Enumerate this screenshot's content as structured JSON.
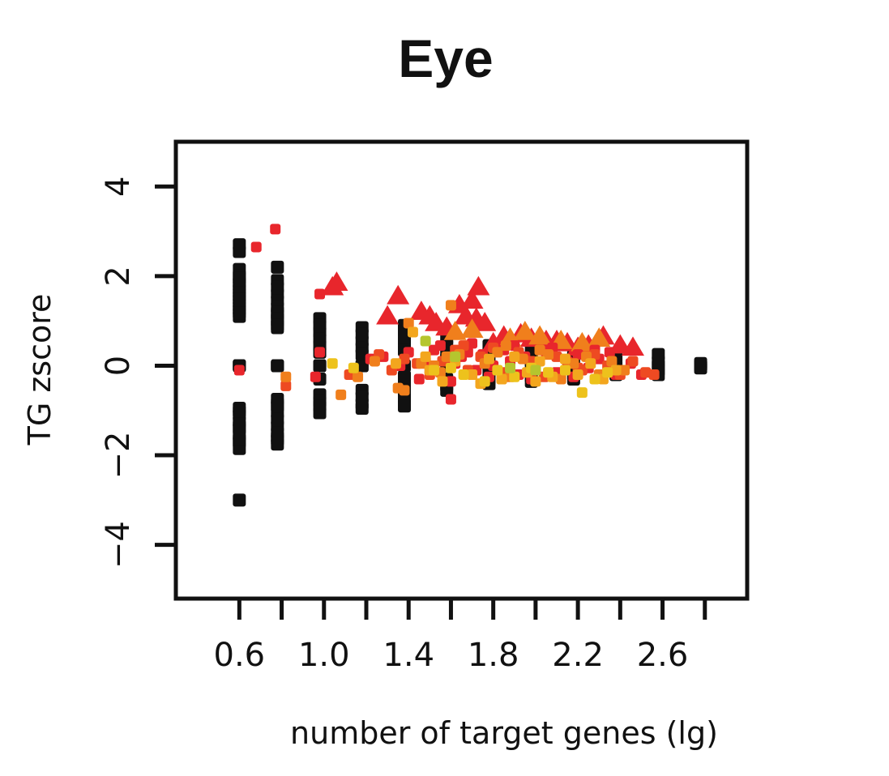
{
  "chart_data": {
    "type": "scatter",
    "title": "Eye",
    "xlabel": "number of target genes (lg)",
    "ylabel": "TG zscore",
    "xlim": [
      0.3,
      3.0
    ],
    "ylim": [
      -5.2,
      5.0
    ],
    "xticks": [
      0.6,
      0.8,
      1.0,
      1.2,
      1.4,
      1.6,
      1.8,
      2.0,
      2.2,
      2.4,
      2.6,
      2.8
    ],
    "xtick_labels": [
      "0.6",
      "",
      "1.0",
      "",
      "1.4",
      "",
      "1.8",
      "",
      "2.2",
      "",
      "2.6",
      ""
    ],
    "yticks": [
      -4,
      -2,
      0,
      2,
      4
    ],
    "ytick_labels": [
      "−4",
      "−2",
      "0",
      "2",
      "4"
    ],
    "grid": false,
    "legend": "none",
    "colors": {
      "background": "#ffffff",
      "axis": "#111111",
      "null": "#111111",
      "red": "#e8262c",
      "orange_red": "#ee4a22",
      "orange": "#f07f1c",
      "amber": "#f3a61e",
      "yellow": "#edc21c",
      "yellow_green": "#b5c52e"
    },
    "series": [
      {
        "marker": "square",
        "color": "#111111",
        "x": [
          0.6,
          0.6,
          0.6,
          0.6,
          0.6,
          0.6,
          0.6,
          0.6,
          0.6,
          0.6,
          0.6,
          0.6,
          0.6,
          0.6,
          0.6,
          0.6,
          0.6,
          0.6,
          0.6,
          0.6,
          0.6,
          0.6,
          0.6,
          0.6,
          0.6,
          0.6,
          0.6,
          0.6,
          0.6,
          0.6,
          0.78,
          0.78,
          0.78,
          0.78,
          0.78,
          0.78,
          0.78,
          0.78,
          0.78,
          0.78,
          0.78,
          0.78,
          0.78,
          0.78,
          0.78,
          0.78,
          0.78,
          0.78,
          0.78,
          0.78,
          0.78,
          0.78,
          0.78,
          0.78,
          0.78,
          0.98,
          0.98,
          0.98,
          0.98,
          0.98,
          0.98,
          0.98,
          0.98,
          0.98,
          0.98,
          0.98,
          0.98,
          0.98,
          0.98,
          1.18,
          1.18,
          1.18,
          1.18,
          1.18,
          1.18,
          1.18,
          1.18,
          1.18,
          1.18,
          1.18,
          1.38,
          1.38,
          1.38,
          1.38,
          1.38,
          1.38,
          1.38,
          1.38,
          1.38,
          1.38,
          1.58,
          1.58,
          1.58,
          1.58,
          1.58,
          1.58,
          1.58,
          1.58,
          1.78,
          1.78,
          1.78,
          1.78,
          1.78,
          1.78,
          1.78,
          1.98,
          1.98,
          1.98,
          1.98,
          1.98,
          1.98,
          2.18,
          2.18,
          2.18,
          2.18,
          2.18,
          2.38,
          2.38,
          2.38,
          2.38,
          2.58,
          2.58,
          2.58,
          2.58,
          2.58,
          2.78,
          2.78,
          2.78,
          2.78,
          2.78
        ],
        "y": [
          2.7,
          2.55,
          2.15,
          2.0,
          1.85,
          1.7,
          1.55,
          1.4,
          1.25,
          1.1,
          0.0,
          0.0,
          0.0,
          -0.95,
          -1.1,
          -1.25,
          -1.4,
          -1.55,
          -1.7,
          -1.85,
          1.95,
          1.78,
          1.62,
          1.48,
          1.32,
          1.18,
          -1.02,
          -1.35,
          -1.65,
          -3.0,
          2.2,
          1.9,
          1.75,
          1.6,
          1.45,
          1.3,
          1.15,
          1.0,
          0.85,
          0.0,
          0.0,
          0.0,
          -0.75,
          -0.9,
          -1.05,
          -1.2,
          -1.35,
          -1.5,
          -1.65,
          -1.75,
          1.2,
          1.05,
          0.9,
          -0.85,
          -1.6,
          1.05,
          0.9,
          0.75,
          0.6,
          0.45,
          0.0,
          0.0,
          0.0,
          -0.65,
          -0.8,
          -0.9,
          -1.05,
          0.3,
          -0.3,
          0.85,
          0.7,
          0.55,
          0.4,
          0.0,
          0.0,
          -0.55,
          -0.7,
          -0.85,
          -0.95,
          0.25,
          0.9,
          0.75,
          0.55,
          0.0,
          -0.45,
          -0.6,
          -0.75,
          -0.9,
          0.35,
          -0.25,
          0.6,
          0.45,
          0.25,
          0.0,
          -0.3,
          -0.45,
          -0.55,
          0.15,
          0.45,
          0.3,
          0.0,
          -0.3,
          -0.4,
          0.15,
          -0.15,
          0.4,
          0.2,
          0.0,
          -0.25,
          -0.35,
          0.1,
          0.35,
          0.2,
          0.0,
          -0.2,
          -0.3,
          0.2,
          0.0,
          -0.15,
          -0.2,
          0.25,
          0.1,
          0.0,
          -0.1,
          -0.2,
          0.05,
          0.0,
          -0.05,
          0.0,
          0.0
        ]
      },
      {
        "marker": "triangle",
        "color": "#e8262c",
        "x": [
          1.04,
          1.06,
          1.35,
          1.3,
          1.46,
          1.5,
          1.53,
          1.64,
          1.67,
          1.7,
          1.73,
          1.72,
          1.76,
          1.85,
          1.93,
          1.98,
          2.1,
          2.15,
          2.25,
          2.32,
          2.4,
          2.46,
          1.58,
          1.8,
          2.05,
          2.2
        ],
        "y": [
          1.75,
          1.85,
          1.55,
          1.1,
          1.2,
          1.1,
          0.95,
          1.35,
          1.1,
          1.45,
          1.75,
          1.05,
          0.95,
          0.65,
          0.7,
          0.6,
          0.55,
          0.5,
          0.45,
          0.65,
          0.45,
          0.4,
          0.85,
          0.5,
          0.55,
          0.4
        ]
      },
      {
        "marker": "triangle",
        "color": "#f07f1c",
        "x": [
          1.62,
          1.88,
          1.95,
          2.02,
          2.12,
          2.3,
          1.7,
          2.22
        ],
        "y": [
          0.75,
          0.6,
          0.75,
          0.65,
          0.55,
          0.6,
          0.8,
          0.5
        ]
      },
      {
        "marker": "square",
        "color": "#e8262c",
        "x": [
          0.68,
          0.77,
          0.6,
          0.98,
          0.96,
          0.98,
          1.22,
          1.28,
          1.36,
          1.4,
          1.48,
          1.52,
          1.58,
          1.6,
          1.62,
          1.65,
          1.68,
          1.72,
          1.75,
          1.8,
          1.85,
          1.88,
          1.92,
          1.95,
          2.0,
          2.05,
          2.1,
          2.15,
          2.2,
          2.25,
          2.3,
          2.35,
          2.4,
          2.45,
          2.5,
          1.45,
          1.55,
          1.7,
          1.9,
          2.08,
          2.28,
          1.5,
          1.6,
          1.78,
          1.98,
          2.18,
          2.38
        ],
        "y": [
          2.65,
          3.05,
          -0.1,
          1.6,
          -0.25,
          0.3,
          0.15,
          0.2,
          0.0,
          0.3,
          0.1,
          0.35,
          0.15,
          -0.75,
          0.05,
          0.2,
          0.3,
          -0.1,
          0.25,
          0.0,
          0.35,
          0.1,
          -0.2,
          0.2,
          0.05,
          0.3,
          -0.15,
          0.1,
          0.25,
          -0.05,
          0.15,
          0.3,
          -0.1,
          0.05,
          -0.2,
          -0.3,
          0.45,
          0.5,
          0.45,
          0.4,
          0.35,
          -0.1,
          -0.35,
          -0.25,
          -0.3,
          -0.25,
          -0.2
        ]
      },
      {
        "marker": "square",
        "color": "#ee4a22",
        "x": [
          0.82,
          1.12,
          1.26,
          1.32,
          1.38,
          1.44,
          1.5,
          1.56,
          1.62,
          1.68,
          1.74,
          1.8,
          1.86,
          1.92,
          1.98,
          2.04,
          2.1,
          2.16,
          2.22,
          2.28,
          2.34,
          2.4,
          2.46,
          2.52,
          2.56,
          1.66,
          1.84,
          2.02,
          2.2
        ],
        "y": [
          -0.45,
          -0.2,
          0.25,
          -0.1,
          0.15,
          0.05,
          -0.2,
          0.1,
          0.35,
          -0.1,
          0.2,
          0.4,
          -0.15,
          0.3,
          0.1,
          -0.25,
          0.2,
          0.05,
          -0.1,
          0.25,
          0.0,
          -0.2,
          0.1,
          -0.15,
          -0.2,
          0.45,
          -0.3,
          0.35,
          -0.05
        ]
      },
      {
        "marker": "square",
        "color": "#f07f1c",
        "x": [
          0.82,
          1.08,
          1.16,
          1.24,
          1.35,
          1.4,
          1.46,
          1.55,
          1.6,
          1.64,
          1.7,
          1.76,
          1.82,
          1.88,
          1.94,
          2.0,
          2.06,
          2.12,
          2.18,
          2.24,
          2.3,
          2.36,
          2.42,
          1.38,
          1.52,
          1.58,
          1.86,
          2.02
        ],
        "y": [
          -0.25,
          -0.65,
          -0.25,
          0.1,
          -0.5,
          0.95,
          0.05,
          -0.15,
          1.35,
          0.25,
          -0.2,
          0.05,
          0.3,
          -0.25,
          0.15,
          -0.1,
          0.25,
          -0.3,
          0.05,
          0.2,
          -0.2,
          0.1,
          -0.1,
          -0.55,
          0.0,
          0.2,
          0.45,
          0.35
        ]
      },
      {
        "marker": "square",
        "color": "#f3a61e",
        "x": [
          1.34,
          1.42,
          1.5,
          1.56,
          1.62,
          1.7,
          1.78,
          1.84,
          1.9,
          1.96,
          2.02,
          2.08,
          2.14,
          2.2,
          2.26,
          2.32,
          2.38,
          1.48,
          1.74,
          2.0
        ],
        "y": [
          0.05,
          0.75,
          -0.1,
          -0.35,
          0.1,
          -0.2,
          0.15,
          -0.3,
          0.2,
          -0.15,
          0.1,
          -0.25,
          0.15,
          -0.2,
          0.05,
          -0.3,
          -0.1,
          0.2,
          -0.4,
          -0.35
        ]
      },
      {
        "marker": "square",
        "color": "#edc21c",
        "x": [
          1.04,
          1.14,
          1.52,
          1.6,
          1.66,
          1.76,
          1.82,
          1.9,
          1.98,
          2.06,
          2.14,
          2.22,
          2.28,
          2.34
        ],
        "y": [
          0.05,
          -0.05,
          -0.1,
          -0.05,
          -0.2,
          -0.35,
          -0.1,
          -0.25,
          -0.05,
          -0.15,
          -0.1,
          -0.6,
          -0.3,
          -0.15
        ]
      },
      {
        "marker": "square",
        "color": "#b5c52e",
        "x": [
          1.48,
          1.62,
          1.88,
          2.0
        ],
        "y": [
          0.55,
          0.2,
          -0.05,
          -0.1
        ]
      }
    ]
  }
}
